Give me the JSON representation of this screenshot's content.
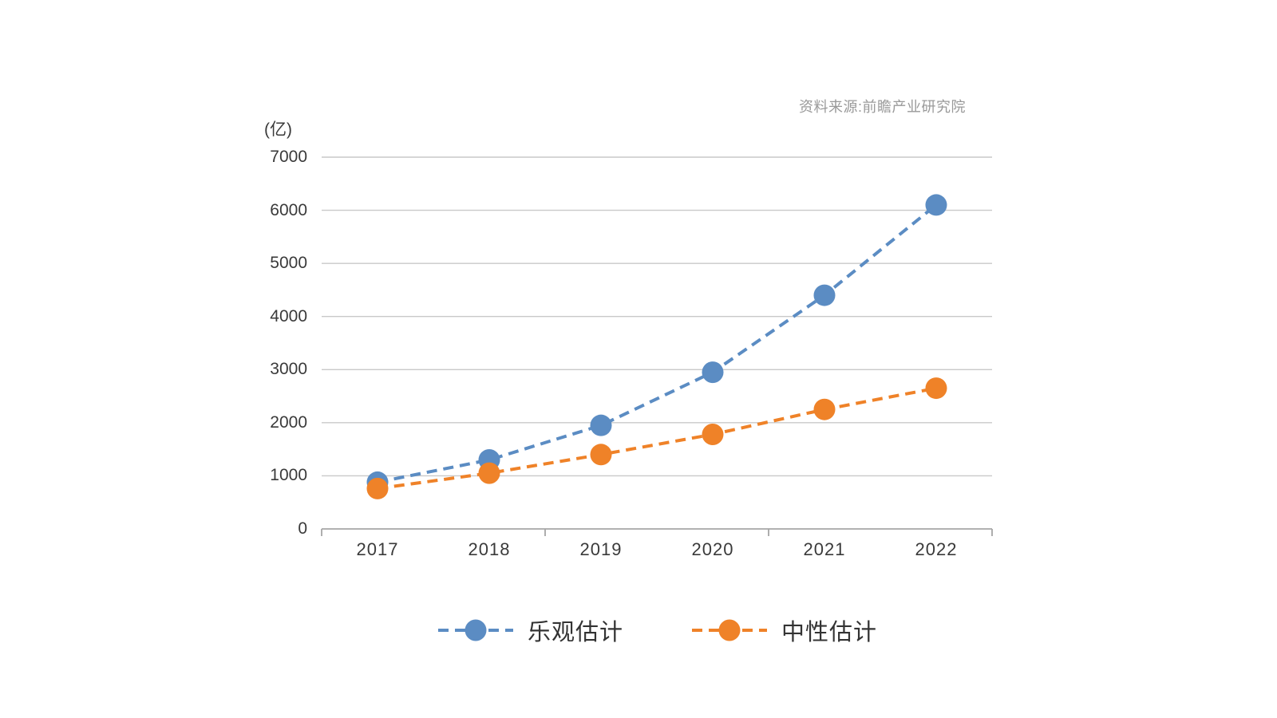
{
  "source_note": "资料来源:前瞻产业研究院",
  "chart_data": {
    "type": "line",
    "title": "",
    "xlabel": "",
    "ylabel": "",
    "unit_label": "(亿)",
    "categories": [
      "2017",
      "2018",
      "2019",
      "2020",
      "2021",
      "2022"
    ],
    "series": [
      {
        "name": "乐观估计",
        "color": "#5B8CC3",
        "marker": "circle",
        "line_style": "dashed",
        "values": [
          880,
          1300,
          1950,
          2950,
          4400,
          6100
        ]
      },
      {
        "name": "中性估计",
        "color": "#EF8228",
        "marker": "circle",
        "line_style": "dashed",
        "values": [
          760,
          1050,
          1400,
          1780,
          2250,
          2650
        ]
      }
    ],
    "ylim": [
      0,
      7000
    ],
    "yticks": [
      0,
      1000,
      2000,
      3000,
      4000,
      5000,
      6000,
      7000
    ],
    "grid": true,
    "legend_position": "bottom",
    "colors": {
      "gridline": "#c9c9c9",
      "axis": "#a6a6a6",
      "tick_text": "#3a3a3a",
      "legend_text": "#333333",
      "source_text": "#999999"
    }
  }
}
